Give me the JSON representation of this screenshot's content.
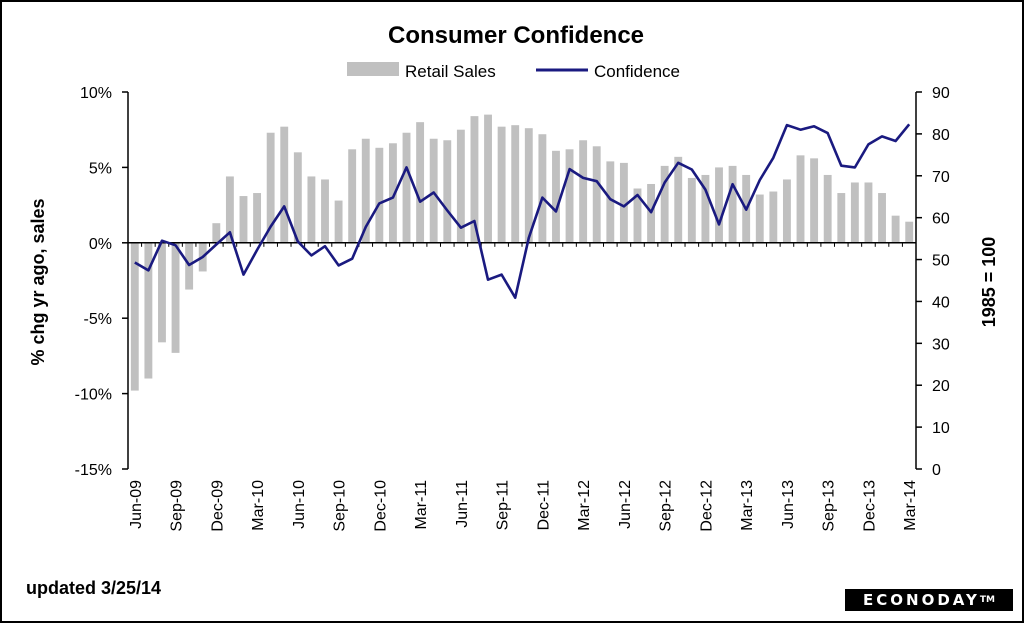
{
  "chart_data": {
    "type": "bar+line",
    "title": "Consumer Confidence",
    "legend": {
      "placement": "top-center",
      "entries": [
        {
          "name": "Retail Sales",
          "kind": "bar",
          "color": "#c0c0c0"
        },
        {
          "name": "Confidence",
          "kind": "line",
          "color": "#1a1a80"
        }
      ]
    },
    "left_axis": {
      "label": "% chg yr ago, sales",
      "min": -15,
      "max": 10,
      "step": 5,
      "tick_labels": [
        "-15%",
        "-10%",
        "-5%",
        "0%",
        "5%",
        "10%"
      ]
    },
    "right_axis": {
      "label": "1985 = 100",
      "min": 0,
      "max": 90,
      "step": 10,
      "tick_labels": [
        "0",
        "10",
        "20",
        "30",
        "40",
        "50",
        "60",
        "70",
        "80",
        "90"
      ]
    },
    "x_tick_labels": [
      "Jun-09",
      "Sep-09",
      "Dec-09",
      "Mar-10",
      "Jun-10",
      "Sep-10",
      "Dec-10",
      "Mar-11",
      "Jun-11",
      "Sep-11",
      "Dec-11",
      "Mar-12",
      "Jun-12",
      "Sep-12",
      "Dec-12",
      "Mar-13",
      "Jun-13",
      "Sep-13",
      "Dec-13",
      "Mar-14"
    ],
    "months": [
      "Jun-09",
      "Jul-09",
      "Aug-09",
      "Sep-09",
      "Oct-09",
      "Nov-09",
      "Dec-09",
      "Jan-10",
      "Feb-10",
      "Mar-10",
      "Apr-10",
      "May-10",
      "Jun-10",
      "Jul-10",
      "Aug-10",
      "Sep-10",
      "Oct-10",
      "Nov-10",
      "Dec-10",
      "Jan-11",
      "Feb-11",
      "Mar-11",
      "Apr-11",
      "May-11",
      "Jun-11",
      "Jul-11",
      "Aug-11",
      "Sep-11",
      "Oct-11",
      "Nov-11",
      "Dec-11",
      "Jan-12",
      "Feb-12",
      "Mar-12",
      "Apr-12",
      "May-12",
      "Jun-12",
      "Jul-12",
      "Aug-12",
      "Sep-12",
      "Oct-12",
      "Nov-12",
      "Dec-12",
      "Jan-13",
      "Feb-13",
      "Mar-13",
      "Apr-13",
      "May-13",
      "Jun-13",
      "Jul-13",
      "Aug-13",
      "Sep-13",
      "Oct-13",
      "Nov-13",
      "Dec-13",
      "Jan-14",
      "Feb-14",
      "Mar-14"
    ],
    "series": [
      {
        "name": "Retail Sales",
        "axis": "left",
        "values": [
          -9.8,
          -9.0,
          -6.6,
          -7.3,
          -3.1,
          -1.9,
          1.3,
          4.4,
          3.1,
          3.3,
          7.3,
          7.7,
          6.0,
          4.4,
          4.2,
          2.8,
          6.2,
          6.9,
          6.3,
          6.6,
          7.3,
          8.0,
          6.9,
          6.8,
          7.5,
          8.4,
          8.5,
          7.7,
          7.8,
          7.6,
          7.2,
          6.1,
          6.2,
          6.8,
          6.4,
          5.4,
          5.3,
          3.6,
          3.9,
          5.1,
          5.7,
          4.3,
          4.5,
          5.0,
          5.1,
          4.5,
          3.2,
          3.4,
          4.2,
          5.8,
          5.6,
          4.5,
          3.3,
          4.0,
          4.0,
          3.3,
          1.8,
          1.4
        ]
      },
      {
        "name": "Confidence",
        "axis": "right",
        "values": [
          49.3,
          47.4,
          54.5,
          53.4,
          48.7,
          50.6,
          53.6,
          56.5,
          46.4,
          52.3,
          57.9,
          62.7,
          54.3,
          51.0,
          53.2,
          48.6,
          50.2,
          57.8,
          63.4,
          64.8,
          72.0,
          63.8,
          66.0,
          61.7,
          57.6,
          59.2,
          45.2,
          46.4,
          40.9,
          55.2,
          64.8,
          61.5,
          71.6,
          69.5,
          68.7,
          64.4,
          62.7,
          65.4,
          61.3,
          68.4,
          73.1,
          71.5,
          66.7,
          58.4,
          68.0,
          61.9,
          69.0,
          74.3,
          82.1,
          81.0,
          81.8,
          80.2,
          72.4,
          72.0,
          77.5,
          79.4,
          78.3,
          82.3
        ]
      }
    ],
    "grid": false
  },
  "footer": {
    "updated_text": "updated 3/25/14",
    "brand": "ECONODAY",
    "brand_mark": "TM"
  }
}
